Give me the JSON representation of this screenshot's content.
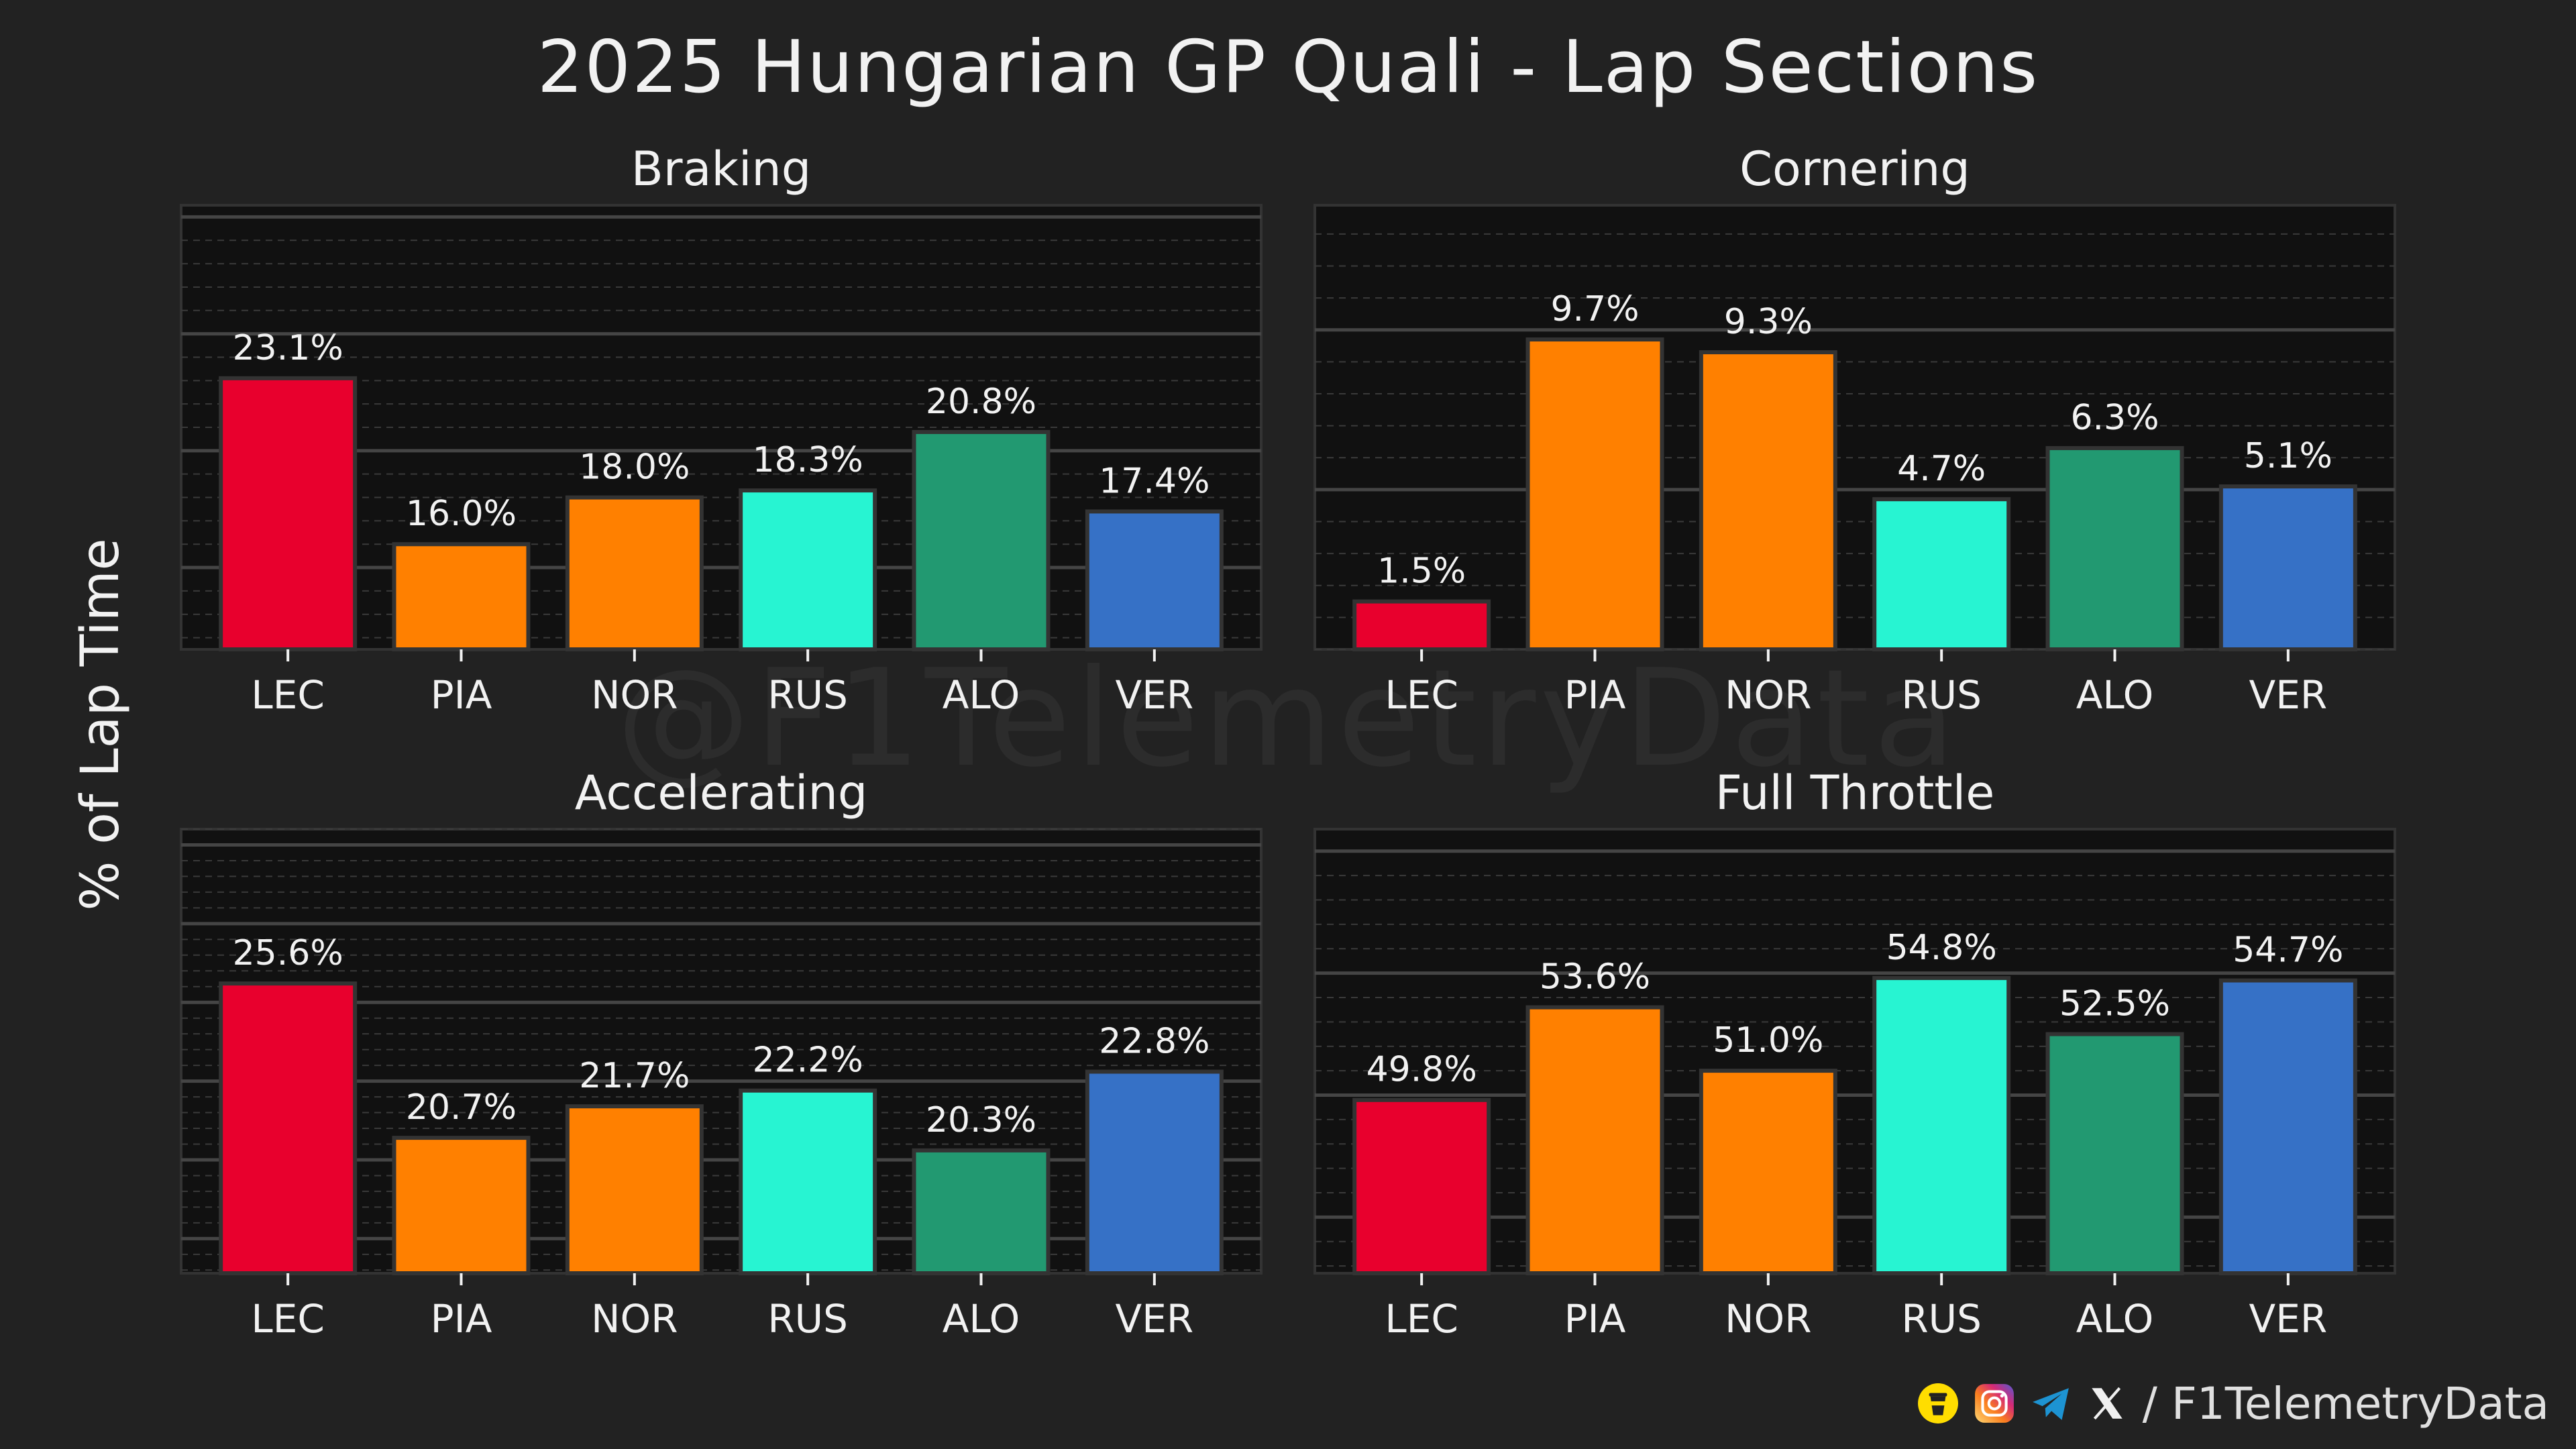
{
  "title": "2025 Hungarian GP Quali - Lap Sections",
  "ylabel": "% of Lap Time",
  "watermark": "@F1TelemetryData",
  "footer": {
    "handle": "/ F1TelemetryData",
    "icons": [
      "bmc-icon",
      "instagram-icon",
      "telegram-icon",
      "x-icon"
    ]
  },
  "colors": {
    "LEC": "#e8002d",
    "PIA": "#ff8000",
    "NOR": "#ff8000",
    "RUS": "#27f4d2",
    "ALO": "#229971",
    "VER": "#3671c6",
    "background": "#222222",
    "plot_background": "#111111"
  },
  "chart_data": [
    {
      "type": "bar",
      "title": "Braking",
      "categories": [
        "LEC",
        "PIA",
        "NOR",
        "RUS",
        "ALO",
        "VER"
      ],
      "values": [
        23.1,
        16.0,
        18.0,
        18.3,
        20.8,
        17.4
      ],
      "labels": [
        "23.1%",
        "16.0%",
        "18.0%",
        "18.3%",
        "20.8%",
        "17.4%"
      ],
      "ylim": [
        11.5,
        30.5
      ],
      "major_grid": [
        15,
        20,
        25,
        30
      ],
      "grid": true
    },
    {
      "type": "bar",
      "title": "Cornering",
      "categories": [
        "LEC",
        "PIA",
        "NOR",
        "RUS",
        "ALO",
        "VER"
      ],
      "values": [
        1.5,
        9.7,
        9.3,
        4.7,
        6.3,
        5.1
      ],
      "labels": [
        "1.5%",
        "9.7%",
        "9.3%",
        "4.7%",
        "6.3%",
        "5.1%"
      ],
      "ylim": [
        0,
        13.9
      ],
      "major_grid": [
        5,
        10
      ],
      "grid": true
    },
    {
      "type": "bar",
      "title": "Accelerating",
      "categories": [
        "LEC",
        "PIA",
        "NOR",
        "RUS",
        "ALO",
        "VER"
      ],
      "values": [
        25.6,
        20.7,
        21.7,
        22.2,
        20.3,
        22.8
      ],
      "labels": [
        "25.6%",
        "20.7%",
        "21.7%",
        "22.2%",
        "20.3%",
        "22.8%"
      ],
      "ylim": [
        16.4,
        30.5
      ],
      "major_grid": [
        17.5,
        20.0,
        22.5,
        25.0,
        27.5,
        30.0
      ],
      "grid": true
    },
    {
      "type": "bar",
      "title": "Full Throttle",
      "categories": [
        "LEC",
        "PIA",
        "NOR",
        "RUS",
        "ALO",
        "VER"
      ],
      "values": [
        49.8,
        53.6,
        51.0,
        54.8,
        52.5,
        54.7
      ],
      "labels": [
        "49.8%",
        "53.6%",
        "51.0%",
        "54.8%",
        "52.5%",
        "54.7%"
      ],
      "ylim": [
        42.7,
        60.9
      ],
      "major_grid": [
        45,
        50,
        55,
        60
      ],
      "grid": true
    }
  ]
}
